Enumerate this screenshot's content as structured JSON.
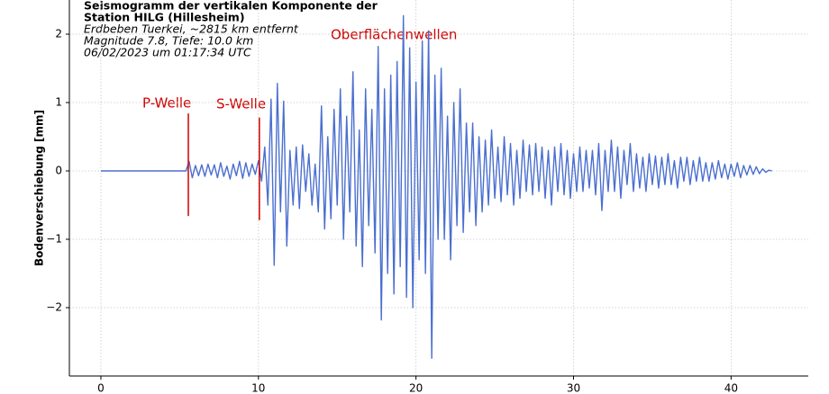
{
  "chart_data": {
    "type": "line",
    "title_lines": [
      "Seismogramm der vertikalen Komponente der",
      "Station HILG (Hillesheim)"
    ],
    "subtitle_lines": [
      "Erdbeben Tuerkei, ~2815 km entfernt",
      "Magnitude 7.8, Tiefe: 10.0 km",
      "06/02/2023 um 01:17:34 UTC"
    ],
    "ylabel": "Bodenverschiebung [mm]",
    "xlim": [
      -2.0,
      44.9
    ],
    "ylim": [
      -3.0,
      2.5
    ],
    "xticks": [
      0,
      10,
      20,
      30,
      40
    ],
    "yticks": [
      {
        "value": -2,
        "label": "−2"
      },
      {
        "value": -1,
        "label": "−1"
      },
      0,
      1,
      2
    ],
    "grid": true,
    "color": "#4a6fcf",
    "annotation_color": "#d00000",
    "annotations": [
      {
        "text": "P-Welle",
        "x": 5.55,
        "ymin": -0.66,
        "ymax": 0.84
      },
      {
        "text": "S-Welle",
        "x": 10.06,
        "ymin": -0.72,
        "ymax": 0.78
      },
      {
        "text": "Oberflächenwellen"
      }
    ],
    "x": [
      0,
      5.4,
      5.6,
      5.8,
      6.0,
      6.2,
      6.4,
      6.6,
      6.8,
      7.0,
      7.2,
      7.4,
      7.6,
      7.8,
      8.0,
      8.2,
      8.4,
      8.6,
      8.8,
      9.0,
      9.2,
      9.4,
      9.6,
      9.8,
      10.0,
      10.2,
      10.4,
      10.6,
      10.8,
      11.0,
      11.2,
      11.4,
      11.6,
      11.8,
      12.0,
      12.2,
      12.4,
      12.6,
      12.8,
      13.0,
      13.2,
      13.4,
      13.6,
      13.8,
      14.0,
      14.2,
      14.4,
      14.6,
      14.8,
      15.0,
      15.2,
      15.4,
      15.6,
      15.8,
      16.0,
      16.2,
      16.4,
      16.6,
      16.8,
      17.0,
      17.2,
      17.4,
      17.6,
      17.8,
      18.0,
      18.2,
      18.4,
      18.6,
      18.8,
      19.0,
      19.2,
      19.4,
      19.6,
      19.8,
      20.0,
      20.2,
      20.4,
      20.6,
      20.8,
      21.0,
      21.2,
      21.4,
      21.6,
      21.8,
      22.0,
      22.2,
      22.4,
      22.6,
      22.8,
      23.0,
      23.2,
      23.4,
      23.6,
      23.8,
      24.0,
      24.2,
      24.4,
      24.6,
      24.8,
      25.0,
      25.2,
      25.4,
      25.6,
      25.8,
      26.0,
      26.2,
      26.4,
      26.6,
      26.8,
      27.0,
      27.2,
      27.4,
      27.6,
      27.8,
      28.0,
      28.2,
      28.4,
      28.6,
      28.8,
      29.0,
      29.2,
      29.4,
      29.6,
      29.8,
      30.0,
      30.2,
      30.4,
      30.6,
      30.8,
      31.0,
      31.2,
      31.4,
      31.6,
      31.8,
      32.0,
      32.2,
      32.4,
      32.6,
      32.8,
      33.0,
      33.2,
      33.4,
      33.6,
      33.8,
      34.0,
      34.2,
      34.4,
      34.6,
      34.8,
      35.0,
      35.2,
      35.4,
      35.6,
      35.8,
      36.0,
      36.2,
      36.4,
      36.6,
      36.8,
      37.0,
      37.2,
      37.4,
      37.6,
      37.8,
      38.0,
      38.2,
      38.4,
      38.6,
      38.8,
      39.0,
      39.2,
      39.4,
      39.6,
      39.8,
      40.0,
      40.2,
      40.4,
      40.6,
      40.8,
      41.0,
      41.2,
      41.4,
      41.6,
      41.8,
      42.0,
      42.2,
      42.4,
      42.6
    ],
    "values": [
      0,
      0,
      0.14,
      -0.1,
      0.08,
      -0.07,
      0.09,
      -0.08,
      0.1,
      -0.06,
      0.09,
      -0.1,
      0.12,
      -0.08,
      0.07,
      -0.12,
      0.1,
      -0.07,
      0.14,
      -0.11,
      0.12,
      -0.08,
      0.1,
      -0.05,
      0.15,
      -0.15,
      0.35,
      -0.5,
      1.05,
      -1.38,
      1.28,
      -0.6,
      1.02,
      -1.1,
      0.3,
      -0.5,
      0.35,
      -0.55,
      0.38,
      -0.3,
      0.25,
      -0.5,
      0.1,
      -0.6,
      0.95,
      -0.85,
      0.5,
      -0.7,
      0.9,
      -0.5,
      1.2,
      -1.0,
      0.8,
      -0.6,
      1.45,
      -1.1,
      0.6,
      -1.4,
      1.2,
      -0.8,
      0.9,
      -1.2,
      1.82,
      -2.18,
      1.2,
      -1.5,
      1.4,
      -1.8,
      1.6,
      -1.4,
      2.27,
      -1.85,
      1.8,
      -2.0,
      1.3,
      -1.3,
      1.9,
      -1.5,
      2.05,
      -2.74,
      1.4,
      -1.0,
      1.5,
      -1.0,
      0.8,
      -1.3,
      1.0,
      -0.8,
      1.2,
      -0.9,
      0.7,
      -0.6,
      0.7,
      -0.8,
      0.5,
      -0.6,
      0.45,
      -0.5,
      0.6,
      -0.4,
      0.35,
      -0.45,
      0.5,
      -0.35,
      0.4,
      -0.5,
      0.3,
      -0.4,
      0.45,
      -0.3,
      0.38,
      -0.35,
      0.4,
      -0.3,
      0.35,
      -0.4,
      0.3,
      -0.5,
      0.35,
      -0.3,
      0.4,
      -0.35,
      0.3,
      -0.4,
      0.25,
      -0.3,
      0.35,
      -0.3,
      0.3,
      -0.25,
      0.3,
      -0.35,
      0.4,
      -0.58,
      0.3,
      -0.3,
      0.45,
      -0.3,
      0.35,
      -0.4,
      0.3,
      -0.2,
      0.4,
      -0.3,
      0.25,
      -0.25,
      0.2,
      -0.3,
      0.25,
      -0.2,
      0.22,
      -0.25,
      0.2,
      -0.2,
      0.25,
      -0.2,
      0.15,
      -0.25,
      0.2,
      -0.15,
      0.2,
      -0.2,
      0.15,
      -0.15,
      0.2,
      -0.15,
      0.12,
      -0.15,
      0.12,
      -0.12,
      0.15,
      -0.1,
      0.1,
      -0.12,
      0.1,
      -0.08,
      0.12,
      -0.1,
      0.08,
      -0.06,
      0.08,
      -0.05,
      0.06,
      -0.04,
      0.03,
      -0.02,
      0.01,
      0
    ]
  }
}
